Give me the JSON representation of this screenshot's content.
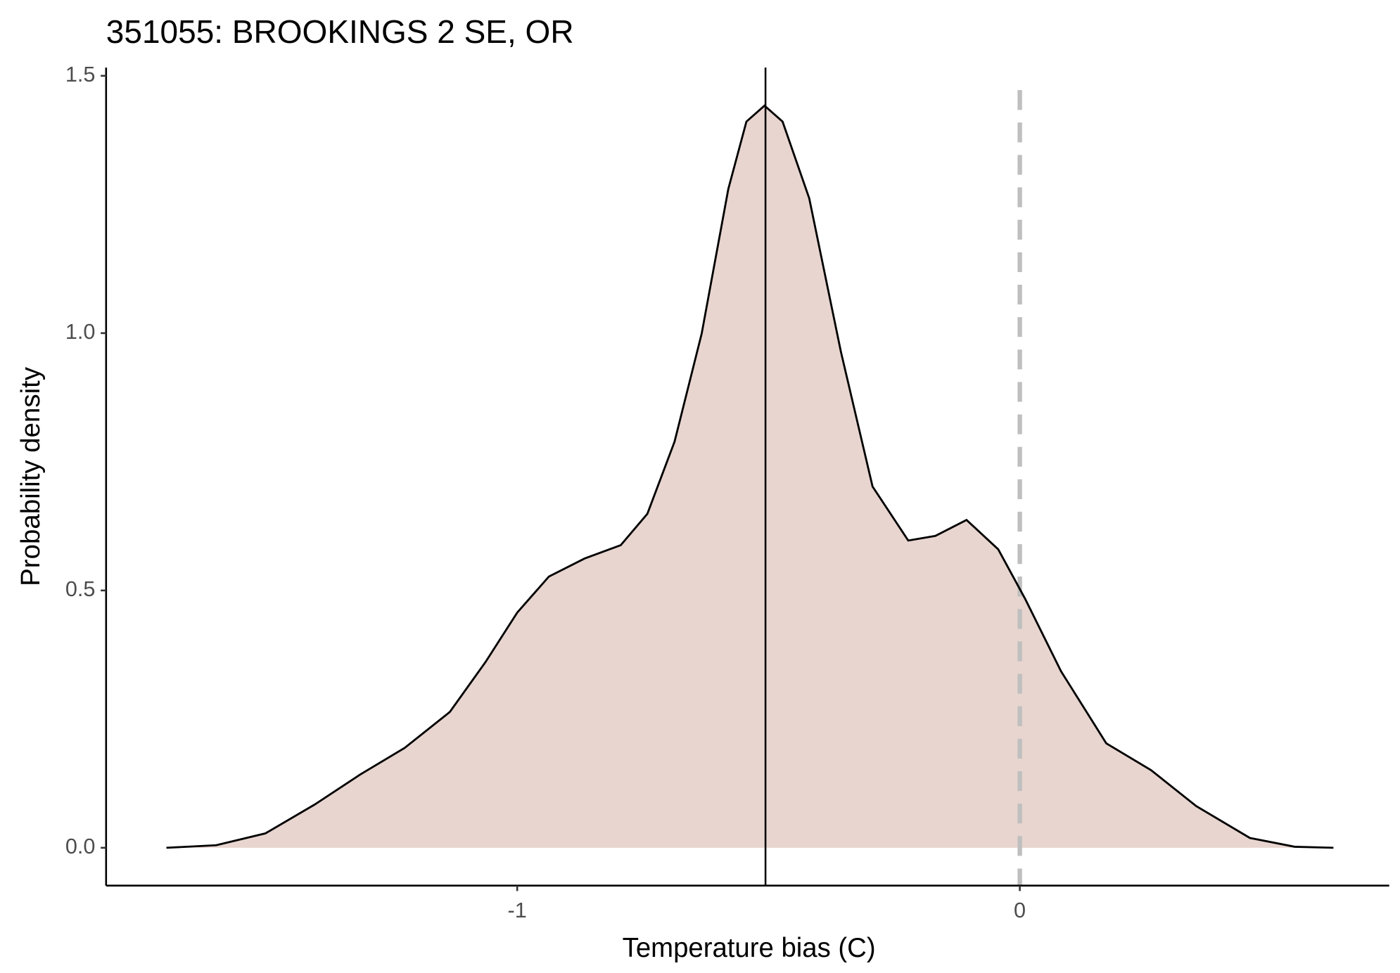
{
  "chart_data": {
    "type": "density",
    "title": "351055: BROOKINGS 2 SE, OR",
    "x_label": "Temperature bias (C)",
    "y_label": "Probability density",
    "x": [
      -1.698,
      -1.599,
      -1.501,
      -1.403,
      -1.313,
      -1.224,
      -1.134,
      -1.063,
      -1.0,
      -0.937,
      -0.866,
      -0.794,
      -0.741,
      -0.687,
      -0.633,
      -0.58,
      -0.544,
      -0.508,
      -0.472,
      -0.419,
      -0.356,
      -0.293,
      -0.222,
      -0.168,
      -0.106,
      -0.043,
      0.011,
      0.082,
      0.172,
      0.261,
      0.351,
      0.458,
      0.547,
      0.624
    ],
    "values": [
      0,
      0.005,
      0.028,
      0.084,
      0.142,
      0.194,
      0.264,
      0.361,
      0.457,
      0.527,
      0.562,
      0.588,
      0.649,
      0.789,
      0.999,
      1.28,
      1.411,
      1.442,
      1.411,
      1.262,
      0.964,
      0.702,
      0.597,
      0.606,
      0.637,
      0.58,
      0.483,
      0.343,
      0.203,
      0.151,
      0.081,
      0.019,
      0.002,
      0
    ],
    "fill": "#e8d5cf",
    "line_color": "#000000",
    "vlines": [
      {
        "x": -0.506,
        "color": "#000000",
        "dashed": false
      },
      {
        "x": 0,
        "color": "#bfbfbf",
        "dashed": true
      }
    ],
    "xlim": [
      -1.818,
      0.735
    ],
    "ylim": [
      -0.0735,
      1.516
    ],
    "xticks": [
      -1,
      0
    ],
    "yticks": [
      {
        "value": 0,
        "label": "0.0"
      },
      {
        "value": 0.5,
        "label": "0.5"
      },
      {
        "value": 1,
        "label": "1.0"
      },
      {
        "value": 1.5,
        "label": "1.5"
      }
    ],
    "grid": false
  }
}
